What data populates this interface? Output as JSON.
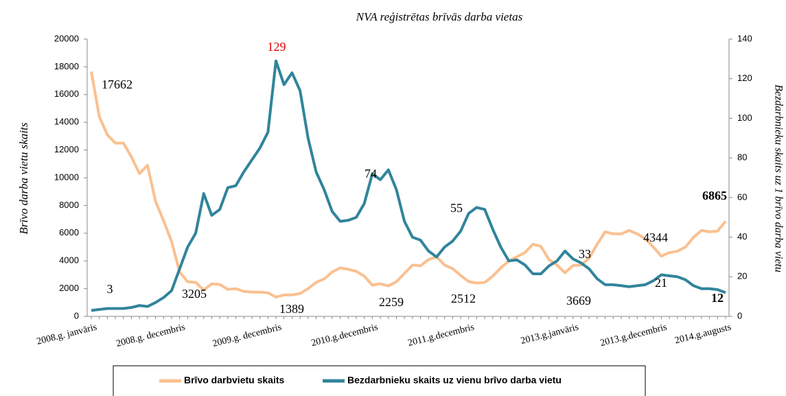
{
  "chart_data": {
    "type": "line",
    "title": "NVA reģistrētas brīvās darba vietas",
    "y_label": "Brīvo darba vietu skaits",
    "y2_label": "Bezdarbnieku skaits uz 1 brīvo darba vietu",
    "categories": [
      "2008.g. janvāris",
      null,
      null,
      null,
      null,
      null,
      null,
      null,
      null,
      null,
      null,
      "2008.g. decembris",
      null,
      null,
      null,
      null,
      null,
      null,
      null,
      null,
      null,
      null,
      null,
      "2009.g. decembris",
      null,
      null,
      null,
      null,
      null,
      null,
      null,
      null,
      null,
      null,
      null,
      "2010.g.decembris",
      null,
      null,
      null,
      null,
      null,
      null,
      null,
      null,
      null,
      null,
      null,
      "2011.g.decembris",
      null,
      null,
      null,
      null,
      null,
      null,
      null,
      null,
      null,
      null,
      null,
      null,
      "2013.g.janvāris",
      null,
      null,
      null,
      null,
      null,
      null,
      null,
      null,
      null,
      null,
      "2013.g.decembris",
      null,
      null,
      null,
      null,
      null,
      null,
      null,
      "2014.g.augusts"
    ],
    "series": [
      {
        "name": "Brīvo darbvietu skaits",
        "color": "#fac090",
        "axis": "y",
        "values": [
          17662,
          14400,
          13100,
          12500,
          12500,
          11500,
          10300,
          10900,
          8300,
          6900,
          5400,
          3205,
          2500,
          2450,
          1900,
          2350,
          2300,
          1950,
          2000,
          1800,
          1750,
          1750,
          1700,
          1389,
          1550,
          1550,
          1650,
          2000,
          2450,
          2700,
          3200,
          3500,
          3400,
          3250,
          2900,
          2259,
          2350,
          2200,
          2500,
          3100,
          3700,
          3650,
          4100,
          4300,
          3700,
          3450,
          2950,
          2512,
          2400,
          2450,
          2900,
          3500,
          4000,
          4300,
          4600,
          5200,
          5050,
          4100,
          3700,
          3150,
          3669,
          3700,
          4200,
          5200,
          6100,
          5950,
          5950,
          6200,
          5950,
          5600,
          5000,
          4344,
          4600,
          4700,
          5000,
          5700,
          6200,
          6100,
          6150,
          6865
        ]
      },
      {
        "name": "Bezdarbnieku skaits uz vienu brīvo darba vietu",
        "color": "#31849b",
        "axis": "y2",
        "values": [
          3,
          3.5,
          4,
          4,
          4,
          4.5,
          5.5,
          5,
          7,
          9.5,
          13,
          24,
          35,
          42,
          62,
          51,
          54,
          65,
          66,
          73,
          79,
          85,
          93,
          129,
          117,
          123,
          114,
          90,
          73,
          64,
          53,
          48,
          48.5,
          50,
          57,
          72,
          69,
          74,
          64,
          48,
          40,
          38.5,
          33,
          30,
          35,
          38,
          43,
          52,
          55,
          54,
          44,
          35,
          28,
          28.5,
          26,
          21.5,
          21.5,
          25.5,
          28,
          33,
          29,
          27,
          24,
          19,
          16,
          16,
          15.5,
          15,
          15.5,
          16,
          18,
          21,
          20.5,
          20,
          18.5,
          15.5,
          14,
          14,
          13.5,
          12
        ]
      }
    ],
    "ylim": [
      0,
      20000
    ],
    "yticks": [
      0,
      2000,
      4000,
      6000,
      8000,
      10000,
      12000,
      14000,
      16000,
      18000,
      20000
    ],
    "y2lim": [
      0,
      140
    ],
    "y2ticks": [
      0,
      20,
      40,
      60,
      80,
      100,
      120,
      140
    ],
    "legend": "bottom"
  }
}
